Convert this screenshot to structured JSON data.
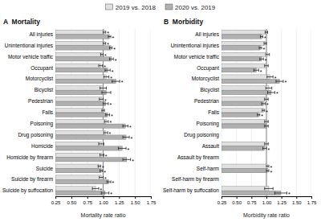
{
  "chart_data": [
    {
      "type": "bar",
      "orientation": "horizontal",
      "title": "A  Mortality",
      "x_label": "Mortality rate ratio",
      "legend": "top",
      "grid": true,
      "xlim": [
        0.25,
        1.75
      ],
      "xticks": [
        0.25,
        {
          "value": 0.5,
          "label": "0.50"
        },
        0.75,
        {
          "value": 1.0,
          "label": "1.00"
        },
        1.25,
        {
          "value": 1.5,
          "label": "1.50"
        },
        1.75
      ],
      "reference_x": 1.0,
      "categories": [
        "All injuries",
        "Unintentional injuries",
        "Motor vehicle traffic",
        "Occupant",
        "Motorcyclist",
        "Bicyclist",
        "Pedestrian",
        "Falls",
        "Poisoning",
        "Drug poisoning",
        "Homicide",
        "Homicide by firearm",
        "Suicide",
        "Suicide by firearm",
        "Suicide by suffocation"
      ],
      "series": [
        {
          "name": "2019 vs. 2018",
          "color": "#e0e0e0",
          "values": [
            1.02,
            1.02,
            0.98,
            0.96,
            1.05,
            1.0,
            0.97,
            1.0,
            1.05,
            1.04,
            0.97,
            0.98,
            0.94,
            0.97,
            0.88
          ],
          "ci_lo": [
            1.0,
            1.0,
            0.96,
            0.93,
            1.01,
            0.95,
            0.94,
            0.98,
            1.02,
            1.01,
            0.93,
            0.95,
            0.92,
            0.94,
            0.83
          ],
          "ci_hi": [
            1.04,
            1.04,
            1.0,
            0.99,
            1.09,
            1.05,
            1.0,
            1.02,
            1.08,
            1.07,
            1.01,
            1.01,
            0.96,
            1.0,
            0.93
          ],
          "sig_labels": [
            "*",
            "*",
            "*",
            "*",
            "*",
            null,
            "*",
            null,
            "*",
            "*",
            null,
            "*",
            "*",
            "*",
            "*"
          ]
        },
        {
          "name": "2020 vs. 2019",
          "color": "#b0b0b0",
          "values": [
            1.1,
            1.12,
            1.13,
            1.07,
            1.2,
            1.05,
            1.04,
            1.07,
            1.35,
            1.36,
            1.3,
            1.37,
            0.97,
            1.09,
            1.03
          ],
          "ci_lo": [
            1.08,
            1.1,
            1.1,
            1.03,
            1.14,
            0.98,
            1.0,
            1.04,
            1.31,
            1.31,
            1.24,
            1.31,
            0.95,
            1.06,
            0.97
          ],
          "ci_hi": [
            1.12,
            1.14,
            1.16,
            1.11,
            1.26,
            1.12,
            1.08,
            1.1,
            1.39,
            1.41,
            1.36,
            1.43,
            0.99,
            1.12,
            1.09
          ],
          "sig_labels": [
            "*",
            "*",
            "*",
            "*",
            "*",
            null,
            "*",
            "*",
            "*",
            "*",
            "*",
            "*",
            "*",
            "*",
            "*"
          ]
        }
      ]
    },
    {
      "type": "bar",
      "orientation": "horizontal",
      "title": "B  Morbidity",
      "x_label": "Morbidity rate ratio",
      "grid": true,
      "xlim": [
        0.25,
        1.75
      ],
      "xticks": [
        0.25,
        {
          "value": 0.5,
          "label": "0.50"
        },
        0.75,
        {
          "value": 1.0,
          "label": "1.00"
        },
        1.25,
        {
          "value": 1.5,
          "label": "1.50"
        },
        1.75
      ],
      "reference_x": 1.0,
      "categories": [
        "All injuries",
        "Unintentional injuries",
        "Motor vehicle traffic",
        "Occupant",
        "Motorcyclist",
        "Bicyclist",
        "Pedestrian",
        "Falls",
        "Poisoning",
        "Drug poisoning",
        "Assault",
        "Assault by firearm",
        "Self-harm",
        "Self-harm by firearm",
        "Self-harm by suffocation"
      ],
      "series": [
        {
          "color": "#e0e0e0",
          "values": [
            1.0,
            0.98,
            1.02,
            1.0,
            1.06,
            1.04,
            1.0,
            0.95,
            1.0,
            null,
            1.0,
            null,
            1.02,
            null,
            1.04
          ],
          "ci_lo": [
            0.98,
            0.96,
            0.99,
            0.97,
            1.01,
            0.99,
            0.97,
            0.93,
            0.97,
            null,
            0.97,
            null,
            1.0,
            null,
            0.97
          ],
          "ci_hi": [
            1.02,
            1.0,
            1.05,
            1.03,
            1.11,
            1.09,
            1.03,
            0.97,
            1.03,
            null,
            1.03,
            null,
            1.04,
            null,
            1.11
          ],
          "sig_labels": [
            null,
            null,
            null,
            null,
            "*",
            null,
            null,
            "*",
            null,
            null,
            null,
            null,
            "*",
            null,
            null
          ]
        },
        {
          "color": "#b0b0b0",
          "values": [
            0.92,
            0.9,
            0.92,
            0.83,
            1.22,
            1.08,
            0.95,
            0.87,
            1.0,
            null,
            0.97,
            null,
            1.02,
            null,
            1.24
          ],
          "ci_lo": [
            0.9,
            0.88,
            0.89,
            0.79,
            1.16,
            1.02,
            0.92,
            0.85,
            0.97,
            null,
            0.94,
            null,
            1.0,
            null,
            1.14
          ],
          "ci_hi": [
            0.94,
            0.92,
            0.95,
            0.87,
            1.28,
            1.14,
            0.98,
            0.89,
            1.03,
            null,
            1.0,
            null,
            1.04,
            null,
            1.34
          ],
          "sig_labels": [
            "*",
            "*",
            "*",
            "*",
            "*",
            "*",
            "*",
            "*",
            null,
            null,
            "*",
            null,
            "*",
            null,
            "*"
          ]
        }
      ]
    }
  ]
}
